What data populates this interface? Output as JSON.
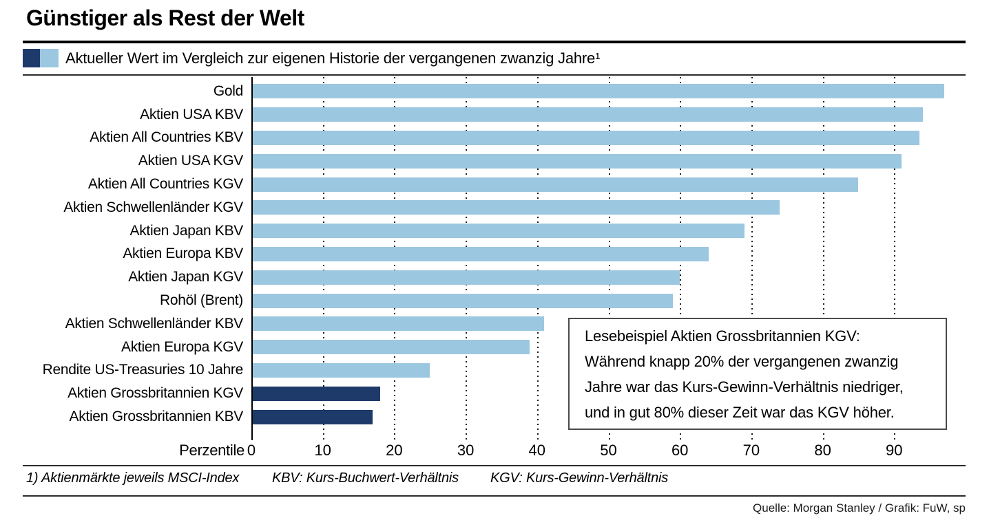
{
  "title": "Günstiger als Rest der Welt",
  "legend": {
    "label": "Aktueller Wert im Vergleich zur eigenen Historie der vergangenen zwanzig Jahre¹",
    "dark_color": "#1e3a6a",
    "light_color": "#9cc7e0"
  },
  "chart_data": {
    "type": "bar",
    "orientation": "horizontal",
    "title": "Günstiger als Rest der Welt",
    "xlabel": "Perzentile",
    "xlim": [
      0,
      100
    ],
    "ticks": [
      0,
      10,
      20,
      30,
      40,
      50,
      60,
      70,
      80,
      90
    ],
    "grid": "dotted-vertical",
    "legend_position": "top",
    "categories": [
      "Gold",
      "Aktien USA KBV",
      "Aktien All Countries KBV",
      "Aktien USA KGV",
      "Aktien All Countries KGV",
      "Aktien Schwellenländer KGV",
      "Aktien Japan KBV",
      "Aktien Europa KBV",
      "Aktien Japan KGV",
      "Rohöl (Brent)",
      "Aktien Schwellenländer KBV",
      "Aktien Europa KGV",
      "Rendite US-Treasuries 10 Jahre",
      "Aktien Grossbritannien KGV",
      "Aktien Grossbritannien KBV"
    ],
    "values": [
      97,
      94,
      93.5,
      91,
      85,
      74,
      69,
      64,
      60,
      59,
      41,
      39,
      25,
      18,
      17
    ],
    "highlight_indices": [
      13,
      14
    ],
    "annotation": {
      "lines": [
        "Lesebeispiel Aktien Grossbritannien KGV:",
        "Während knapp 20% der vergangenen zwanzig",
        "Jahre war das Kurs-Gewinn-Verhältnis niedriger,",
        "und in gut 80% dieser Zeit war das KGV höher."
      ]
    }
  },
  "footnotes": [
    "1) Aktienmärkte jeweils MSCI-Index",
    "KBV: Kurs-Buchwert-Verhältnis",
    "KGV: Kurs-Gewinn-Verhältnis"
  ],
  "source": "Quelle: Morgan Stanley / Grafik: FuW, sp"
}
